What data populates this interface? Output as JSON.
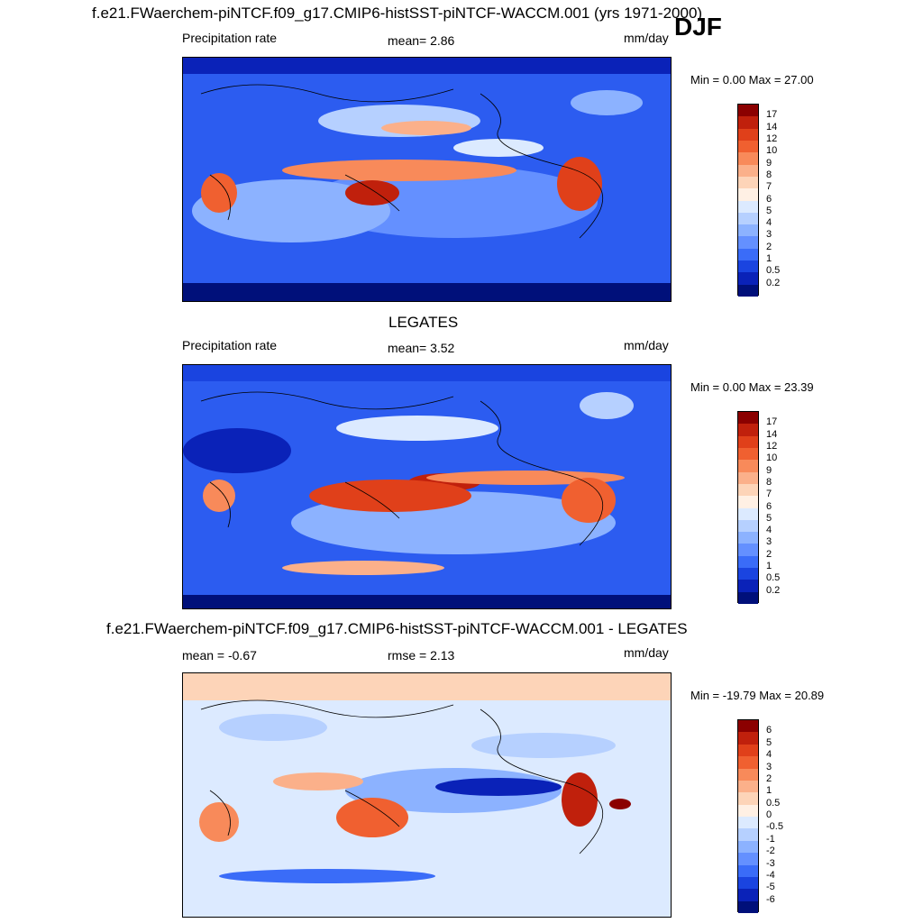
{
  "season": "DJF",
  "panels": [
    {
      "title": "f.e21.FWaerchem-piNTCF.f09_g17.CMIP6-histSST-piNTCF-WACCM.001 (yrs 1971-2000)",
      "left_label": "Precipitation rate",
      "center_label": "mean=   2.86",
      "units": "mm/day",
      "minmax": "Min =   0.00 Max =  27.00",
      "colorbar": {
        "labels": [
          "17",
          "14",
          "12",
          "10",
          "9",
          "8",
          "7",
          "6",
          "5",
          "4",
          "3",
          "2",
          "1",
          "0.5",
          "0.2"
        ],
        "colors": [
          "#8b0000",
          "#c0200c",
          "#e0401a",
          "#f06030",
          "#f88a5a",
          "#fbb08a",
          "#fdd4b8",
          "#fff0e4",
          "#dceaff",
          "#b6d0ff",
          "#8cb2ff",
          "#6490ff",
          "#3a6cf8",
          "#1a44e0",
          "#0a22b8",
          "#00107a"
        ]
      }
    },
    {
      "title": "LEGATES",
      "left_label": "Precipitation rate",
      "center_label": "mean=   3.52",
      "units": "mm/day",
      "minmax": "Min =   0.00 Max =  23.39",
      "colorbar": {
        "labels": [
          "17",
          "14",
          "12",
          "10",
          "9",
          "8",
          "7",
          "6",
          "5",
          "4",
          "3",
          "2",
          "1",
          "0.5",
          "0.2"
        ],
        "colors": [
          "#8b0000",
          "#c0200c",
          "#e0401a",
          "#f06030",
          "#f88a5a",
          "#fbb08a",
          "#fdd4b8",
          "#fff0e4",
          "#dceaff",
          "#b6d0ff",
          "#8cb2ff",
          "#6490ff",
          "#3a6cf8",
          "#1a44e0",
          "#0a22b8",
          "#00107a"
        ]
      }
    },
    {
      "title": "f.e21.FWaerchem-piNTCF.f09_g17.CMIP6-histSST-piNTCF-WACCM.001 - LEGATES",
      "left_label": "mean =  -0.67",
      "center_label": "rmse =   2.13",
      "units": "mm/day",
      "minmax": "Min = -19.79 Max =  20.89",
      "colorbar": {
        "labels": [
          "6",
          "5",
          "4",
          "3",
          "2",
          "1",
          "0.5",
          "0",
          "-0.5",
          "-1",
          "-2",
          "-3",
          "-4",
          "-5",
          "-6"
        ],
        "colors": [
          "#8b0000",
          "#c0200c",
          "#e0401a",
          "#f06030",
          "#f88a5a",
          "#fbb08a",
          "#fdd4b8",
          "#fff0e4",
          "#dceaff",
          "#b6d0ff",
          "#8cb2ff",
          "#6490ff",
          "#3a6cf8",
          "#1a44e0",
          "#0a22b8",
          "#00107a"
        ]
      }
    }
  ]
}
